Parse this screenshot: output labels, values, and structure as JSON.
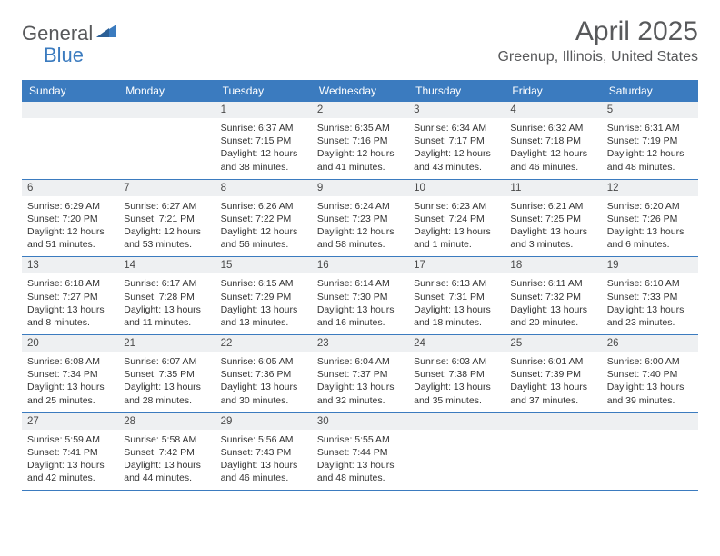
{
  "logo": {
    "general": "General",
    "blue": "Blue"
  },
  "title": "April 2025",
  "location": "Greenup, Illinois, United States",
  "colors": {
    "header_bg": "#3b7bbf",
    "header_text": "#ffffff",
    "num_bg": "#eef0f2",
    "border": "#3b7bbf",
    "text": "#333333",
    "logo_gray": "#58595b",
    "logo_blue": "#3b7bbf"
  },
  "dayNames": [
    "Sunday",
    "Monday",
    "Tuesday",
    "Wednesday",
    "Thursday",
    "Friday",
    "Saturday"
  ],
  "weeks": [
    [
      {
        "n": "",
        "sunrise": "",
        "sunset": "",
        "daylight": ""
      },
      {
        "n": "",
        "sunrise": "",
        "sunset": "",
        "daylight": ""
      },
      {
        "n": "1",
        "sunrise": "Sunrise: 6:37 AM",
        "sunset": "Sunset: 7:15 PM",
        "daylight": "Daylight: 12 hours and 38 minutes."
      },
      {
        "n": "2",
        "sunrise": "Sunrise: 6:35 AM",
        "sunset": "Sunset: 7:16 PM",
        "daylight": "Daylight: 12 hours and 41 minutes."
      },
      {
        "n": "3",
        "sunrise": "Sunrise: 6:34 AM",
        "sunset": "Sunset: 7:17 PM",
        "daylight": "Daylight: 12 hours and 43 minutes."
      },
      {
        "n": "4",
        "sunrise": "Sunrise: 6:32 AM",
        "sunset": "Sunset: 7:18 PM",
        "daylight": "Daylight: 12 hours and 46 minutes."
      },
      {
        "n": "5",
        "sunrise": "Sunrise: 6:31 AM",
        "sunset": "Sunset: 7:19 PM",
        "daylight": "Daylight: 12 hours and 48 minutes."
      }
    ],
    [
      {
        "n": "6",
        "sunrise": "Sunrise: 6:29 AM",
        "sunset": "Sunset: 7:20 PM",
        "daylight": "Daylight: 12 hours and 51 minutes."
      },
      {
        "n": "7",
        "sunrise": "Sunrise: 6:27 AM",
        "sunset": "Sunset: 7:21 PM",
        "daylight": "Daylight: 12 hours and 53 minutes."
      },
      {
        "n": "8",
        "sunrise": "Sunrise: 6:26 AM",
        "sunset": "Sunset: 7:22 PM",
        "daylight": "Daylight: 12 hours and 56 minutes."
      },
      {
        "n": "9",
        "sunrise": "Sunrise: 6:24 AM",
        "sunset": "Sunset: 7:23 PM",
        "daylight": "Daylight: 12 hours and 58 minutes."
      },
      {
        "n": "10",
        "sunrise": "Sunrise: 6:23 AM",
        "sunset": "Sunset: 7:24 PM",
        "daylight": "Daylight: 13 hours and 1 minute."
      },
      {
        "n": "11",
        "sunrise": "Sunrise: 6:21 AM",
        "sunset": "Sunset: 7:25 PM",
        "daylight": "Daylight: 13 hours and 3 minutes."
      },
      {
        "n": "12",
        "sunrise": "Sunrise: 6:20 AM",
        "sunset": "Sunset: 7:26 PM",
        "daylight": "Daylight: 13 hours and 6 minutes."
      }
    ],
    [
      {
        "n": "13",
        "sunrise": "Sunrise: 6:18 AM",
        "sunset": "Sunset: 7:27 PM",
        "daylight": "Daylight: 13 hours and 8 minutes."
      },
      {
        "n": "14",
        "sunrise": "Sunrise: 6:17 AM",
        "sunset": "Sunset: 7:28 PM",
        "daylight": "Daylight: 13 hours and 11 minutes."
      },
      {
        "n": "15",
        "sunrise": "Sunrise: 6:15 AM",
        "sunset": "Sunset: 7:29 PM",
        "daylight": "Daylight: 13 hours and 13 minutes."
      },
      {
        "n": "16",
        "sunrise": "Sunrise: 6:14 AM",
        "sunset": "Sunset: 7:30 PM",
        "daylight": "Daylight: 13 hours and 16 minutes."
      },
      {
        "n": "17",
        "sunrise": "Sunrise: 6:13 AM",
        "sunset": "Sunset: 7:31 PM",
        "daylight": "Daylight: 13 hours and 18 minutes."
      },
      {
        "n": "18",
        "sunrise": "Sunrise: 6:11 AM",
        "sunset": "Sunset: 7:32 PM",
        "daylight": "Daylight: 13 hours and 20 minutes."
      },
      {
        "n": "19",
        "sunrise": "Sunrise: 6:10 AM",
        "sunset": "Sunset: 7:33 PM",
        "daylight": "Daylight: 13 hours and 23 minutes."
      }
    ],
    [
      {
        "n": "20",
        "sunrise": "Sunrise: 6:08 AM",
        "sunset": "Sunset: 7:34 PM",
        "daylight": "Daylight: 13 hours and 25 minutes."
      },
      {
        "n": "21",
        "sunrise": "Sunrise: 6:07 AM",
        "sunset": "Sunset: 7:35 PM",
        "daylight": "Daylight: 13 hours and 28 minutes."
      },
      {
        "n": "22",
        "sunrise": "Sunrise: 6:05 AM",
        "sunset": "Sunset: 7:36 PM",
        "daylight": "Daylight: 13 hours and 30 minutes."
      },
      {
        "n": "23",
        "sunrise": "Sunrise: 6:04 AM",
        "sunset": "Sunset: 7:37 PM",
        "daylight": "Daylight: 13 hours and 32 minutes."
      },
      {
        "n": "24",
        "sunrise": "Sunrise: 6:03 AM",
        "sunset": "Sunset: 7:38 PM",
        "daylight": "Daylight: 13 hours and 35 minutes."
      },
      {
        "n": "25",
        "sunrise": "Sunrise: 6:01 AM",
        "sunset": "Sunset: 7:39 PM",
        "daylight": "Daylight: 13 hours and 37 minutes."
      },
      {
        "n": "26",
        "sunrise": "Sunrise: 6:00 AM",
        "sunset": "Sunset: 7:40 PM",
        "daylight": "Daylight: 13 hours and 39 minutes."
      }
    ],
    [
      {
        "n": "27",
        "sunrise": "Sunrise: 5:59 AM",
        "sunset": "Sunset: 7:41 PM",
        "daylight": "Daylight: 13 hours and 42 minutes."
      },
      {
        "n": "28",
        "sunrise": "Sunrise: 5:58 AM",
        "sunset": "Sunset: 7:42 PM",
        "daylight": "Daylight: 13 hours and 44 minutes."
      },
      {
        "n": "29",
        "sunrise": "Sunrise: 5:56 AM",
        "sunset": "Sunset: 7:43 PM",
        "daylight": "Daylight: 13 hours and 46 minutes."
      },
      {
        "n": "30",
        "sunrise": "Sunrise: 5:55 AM",
        "sunset": "Sunset: 7:44 PM",
        "daylight": "Daylight: 13 hours and 48 minutes."
      },
      {
        "n": "",
        "sunrise": "",
        "sunset": "",
        "daylight": ""
      },
      {
        "n": "",
        "sunrise": "",
        "sunset": "",
        "daylight": ""
      },
      {
        "n": "",
        "sunrise": "",
        "sunset": "",
        "daylight": ""
      }
    ]
  ]
}
